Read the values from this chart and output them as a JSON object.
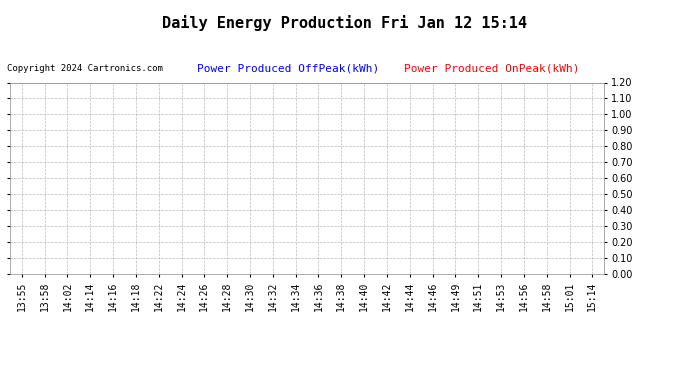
{
  "title": "Daily Energy Production Fri Jan 12 15:14",
  "copyright_text": "Copyright 2024 Cartronics.com",
  "legend_offpeak": "Power Produced OffPeak(kWh)",
  "legend_onpeak": "Power Produced OnPeak(kWh)",
  "offpeak_color": "#0000ff",
  "onpeak_color": "#ff0000",
  "copyright_color": "#000000",
  "bg_color": "#ffffff",
  "plot_bg_color": "#ffffff",
  "grid_color": "#bbbbbb",
  "ylim": [
    0.0,
    1.2
  ],
  "yticks": [
    0.0,
    0.1,
    0.2,
    0.3,
    0.4,
    0.5,
    0.6,
    0.7,
    0.8,
    0.9,
    1.0,
    1.1,
    1.2
  ],
  "xtick_labels": [
    "13:55",
    "13:58",
    "14:02",
    "14:14",
    "14:16",
    "14:18",
    "14:22",
    "14:24",
    "14:26",
    "14:28",
    "14:30",
    "14:32",
    "14:34",
    "14:36",
    "14:38",
    "14:40",
    "14:42",
    "14:44",
    "14:46",
    "14:49",
    "14:51",
    "14:53",
    "14:56",
    "14:58",
    "15:01",
    "15:14"
  ],
  "title_fontsize": 11,
  "legend_fontsize": 8,
  "tick_fontsize": 7,
  "copyright_fontsize": 6.5
}
